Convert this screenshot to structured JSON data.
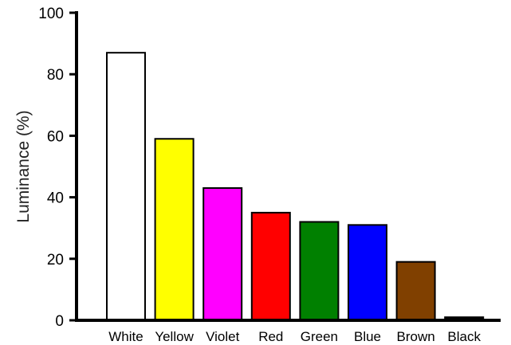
{
  "chart_data": {
    "type": "bar",
    "title": "",
    "xlabel": "",
    "ylabel": "Luminance (%)",
    "ylim": [
      0,
      100
    ],
    "yticks": [
      "0",
      "20",
      "40",
      "60",
      "80",
      "100"
    ],
    "grid": false,
    "legend": "none",
    "categories": [
      "White",
      "Yellow",
      "Violet",
      "Red",
      "Green",
      "Blue",
      "Brown",
      "Black"
    ],
    "values": [
      87,
      59,
      43,
      35,
      32,
      31,
      19,
      1
    ],
    "colors": [
      "#ffffff",
      "#ffff00",
      "#ff00ff",
      "#ff0000",
      "#008000",
      "#0000ff",
      "#804000",
      "#000000"
    ]
  }
}
